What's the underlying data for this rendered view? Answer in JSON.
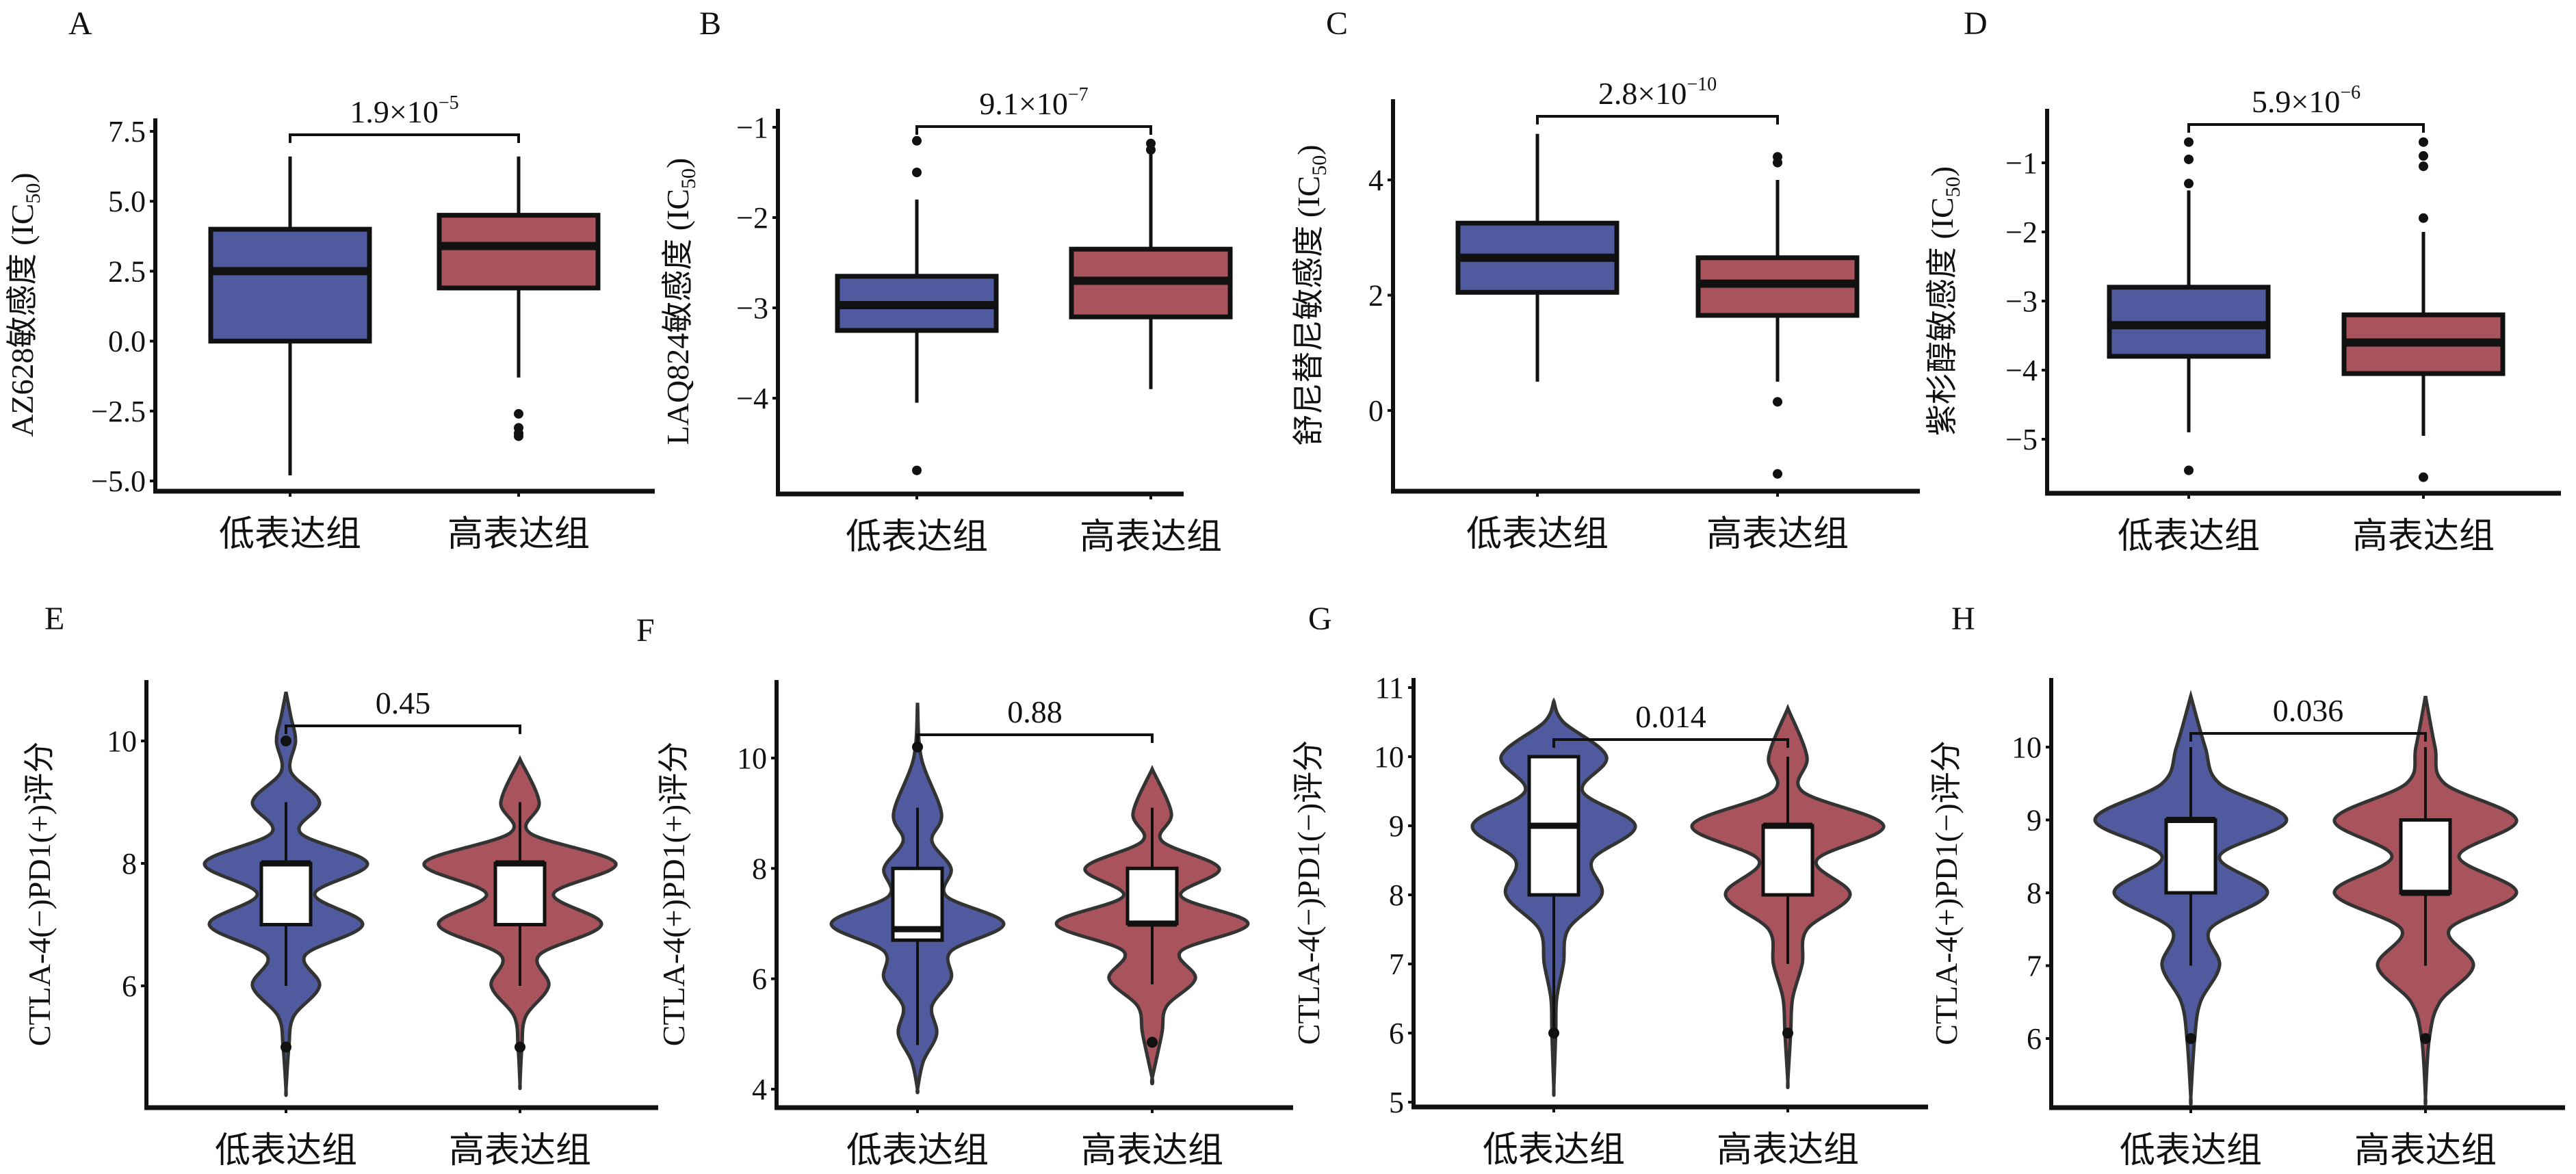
{
  "colors": {
    "low": "#4f5b9e",
    "high": "#a9545d",
    "line": "#111111",
    "violin_edge": "#333333"
  },
  "categories": [
    "低表达组",
    "高表达组"
  ],
  "chart_data": [
    {
      "panel": "A",
      "type": "box",
      "ylabel_main": "AZ628敏感度 (IC",
      "ylabel_sub": "50",
      "ylabel_end": ")",
      "ylim": [
        -5.2,
        7.8
      ],
      "ticks": [
        7.5,
        5.0,
        2.5,
        0.0,
        -2.5,
        -5.0
      ],
      "tick_labels": [
        "7.5",
        "5.0",
        "2.5",
        "0.0",
        "−2.5",
        "−5.0"
      ],
      "p_base": "1.9×10",
      "p_exp": "−5",
      "groups": [
        {
          "q1": 0.0,
          "median": 2.5,
          "q3": 4.0,
          "whisker_low": -4.8,
          "whisker_high": 6.6,
          "outliers": []
        },
        {
          "q1": 1.9,
          "median": 3.4,
          "q3": 4.5,
          "whisker_low": -1.3,
          "whisker_high": 6.6,
          "outliers": [
            -2.6,
            -3.1,
            -3.3,
            -3.4
          ]
        }
      ]
    },
    {
      "panel": "B",
      "type": "box",
      "ylabel_main": "LAQ824敏感度 (IC",
      "ylabel_sub": "50",
      "ylabel_end": ")",
      "ylim": [
        -4.95,
        -0.8
      ],
      "ticks": [
        -1,
        -2,
        -3,
        -4
      ],
      "tick_labels": [
        "−1",
        "−2",
        "−3",
        "−4"
      ],
      "p_base": "9.1×10",
      "p_exp": "−7",
      "groups": [
        {
          "q1": -3.25,
          "median": -2.97,
          "q3": -2.65,
          "whisker_low": -4.05,
          "whisker_high": -1.8,
          "outliers": [
            -1.15,
            -1.5,
            -4.8
          ]
        },
        {
          "q1": -3.1,
          "median": -2.7,
          "q3": -2.35,
          "whisker_low": -3.9,
          "whisker_high": -1.3,
          "outliers": [
            -1.18,
            -1.25
          ]
        }
      ]
    },
    {
      "panel": "C",
      "type": "box",
      "ylabel_main": "舒尼替尼敏感度 (IC",
      "ylabel_sub": "50",
      "ylabel_end": ")",
      "ylim": [
        -1.35,
        5.4
      ],
      "ticks": [
        0,
        2,
        4
      ],
      "tick_labels": [
        "0",
        "2",
        "4"
      ],
      "p_base": "2.8×10",
      "p_exp": "−10",
      "groups": [
        {
          "q1": 2.05,
          "median": 2.65,
          "q3": 3.25,
          "whisker_low": 0.5,
          "whisker_high": 4.8,
          "outliers": []
        },
        {
          "q1": 1.65,
          "median": 2.2,
          "q3": 2.65,
          "whisker_low": 0.5,
          "whisker_high": 4.0,
          "outliers": [
            4.3,
            4.4,
            0.15,
            -1.1
          ]
        }
      ]
    },
    {
      "panel": "D",
      "type": "box",
      "ylabel_main": "紫杉醇敏感度 (IC",
      "ylabel_sub": "50",
      "ylabel_end": ")",
      "ylim": [
        -5.85,
        -0.3
      ],
      "ticks": [
        -1,
        -2,
        -3,
        -4,
        -5
      ],
      "tick_labels": [
        "−1",
        "−2",
        "−3",
        "−4",
        "−5"
      ],
      "p_base": "5.9×10",
      "p_exp": "−6",
      "groups": [
        {
          "q1": -3.8,
          "median": -3.35,
          "q3": -2.8,
          "whisker_low": -4.9,
          "whisker_high": -1.4,
          "outliers": [
            -0.7,
            -0.95,
            -1.3,
            -5.45
          ]
        },
        {
          "q1": -4.05,
          "median": -3.6,
          "q3": -3.2,
          "whisker_low": -4.95,
          "whisker_high": -2.0,
          "outliers": [
            -0.7,
            -0.9,
            -1.05,
            -1.8,
            -5.55
          ]
        }
      ]
    },
    {
      "panel": "E",
      "type": "violin",
      "ylabel_main": "CTLA-4(−)PD1(+)评分",
      "ylim": [
        3.8,
        11.0
      ],
      "ticks": [
        6,
        8,
        10
      ],
      "tick_labels": [
        "6",
        "8",
        "10"
      ],
      "p_base": "0.45",
      "groups": [
        {
          "q1": 7,
          "median": 8,
          "q3": 8,
          "whisker_low": 6,
          "whisker_high": 9,
          "outliers": [
            10,
            5
          ],
          "density": [
            [
              10.8,
              0
            ],
            [
              10.4,
              0.05
            ],
            [
              10,
              0.1
            ],
            [
              9.5,
              0.05
            ],
            [
              9,
              0.35
            ],
            [
              8.5,
              0.15
            ],
            [
              8,
              0.85
            ],
            [
              7.5,
              0.3
            ],
            [
              7,
              0.8
            ],
            [
              6.5,
              0.2
            ],
            [
              6,
              0.35
            ],
            [
              5.5,
              0.08
            ],
            [
              5,
              0.03
            ],
            [
              4.3,
              0
            ]
          ]
        },
        {
          "q1": 7,
          "median": 8,
          "q3": 8,
          "whisker_low": 6,
          "whisker_high": 9,
          "outliers": [
            5
          ],
          "density": [
            [
              9.7,
              0
            ],
            [
              9,
              0.2
            ],
            [
              8.5,
              0.1
            ],
            [
              8,
              1.0
            ],
            [
              7.5,
              0.35
            ],
            [
              7,
              0.85
            ],
            [
              6.5,
              0.2
            ],
            [
              6,
              0.3
            ],
            [
              5.5,
              0.06
            ],
            [
              5,
              0.02
            ],
            [
              4.4,
              0
            ]
          ]
        }
      ]
    },
    {
      "panel": "F",
      "type": "violin",
      "ylabel_main": "CTLA-4(+)PD1(+)评分",
      "ylim": [
        3.8,
        11.2
      ],
      "ticks": [
        4,
        6,
        8,
        10
      ],
      "tick_labels": [
        "4",
        "6",
        "8",
        "10"
      ],
      "p_base": "0.88",
      "groups": [
        {
          "q1": 6.7,
          "median": 6.9,
          "q3": 8,
          "whisker_low": 4.8,
          "whisker_high": 9.1,
          "outliers": [
            10.2
          ],
          "density": [
            [
              11,
              0
            ],
            [
              10,
              0.04
            ],
            [
              9,
              0.25
            ],
            [
              8.5,
              0.15
            ],
            [
              8,
              0.35
            ],
            [
              7.5,
              0.3
            ],
            [
              7,
              0.9
            ],
            [
              6.5,
              0.35
            ],
            [
              6,
              0.35
            ],
            [
              5.5,
              0.15
            ],
            [
              5,
              0.2
            ],
            [
              4.5,
              0.06
            ],
            [
              4,
              0
            ]
          ]
        },
        {
          "q1": 7,
          "median": 7,
          "q3": 8,
          "whisker_low": 5.9,
          "whisker_high": 9.1,
          "outliers": [
            4.85
          ],
          "density": [
            [
              9.8,
              0
            ],
            [
              9,
              0.2
            ],
            [
              8.5,
              0.1
            ],
            [
              8,
              0.7
            ],
            [
              7.5,
              0.3
            ],
            [
              7,
              1.0
            ],
            [
              6.5,
              0.3
            ],
            [
              6,
              0.45
            ],
            [
              5.5,
              0.15
            ],
            [
              5,
              0.1
            ],
            [
              4.2,
              0
            ]
          ]
        }
      ]
    },
    {
      "panel": "G",
      "type": "violin",
      "ylabel_main": "CTLA-4(−)PD1(−)评分",
      "ylim": [
        4.95,
        11.0
      ],
      "ticks": [
        5,
        6,
        7,
        8,
        9,
        10,
        11
      ],
      "tick_labels": [
        "5",
        "6",
        "7",
        "8",
        "9",
        "10",
        "11"
      ],
      "p_base": "0.014",
      "groups": [
        {
          "q1": 8,
          "median": 9,
          "q3": 10,
          "whisker_low": 6,
          "whisker_high": 10,
          "outliers": [
            6
          ],
          "density": [
            [
              10.8,
              0
            ],
            [
              10.5,
              0.1
            ],
            [
              10,
              0.55
            ],
            [
              9.5,
              0.3
            ],
            [
              9,
              0.85
            ],
            [
              8.5,
              0.4
            ],
            [
              8,
              0.5
            ],
            [
              7.5,
              0.15
            ],
            [
              7,
              0.1
            ],
            [
              6.5,
              0.03
            ],
            [
              6,
              0.02
            ],
            [
              5.2,
              0
            ]
          ]
        },
        {
          "q1": 8,
          "median": 9,
          "q3": 9,
          "whisker_low": 7,
          "whisker_high": 10,
          "outliers": [
            6
          ],
          "density": [
            [
              10.7,
              0
            ],
            [
              10,
              0.2
            ],
            [
              9.5,
              0.15
            ],
            [
              9,
              1.0
            ],
            [
              8.5,
              0.3
            ],
            [
              8,
              0.65
            ],
            [
              7.5,
              0.2
            ],
            [
              7,
              0.15
            ],
            [
              6.5,
              0.05
            ],
            [
              6,
              0.03
            ],
            [
              5.3,
              0
            ]
          ]
        }
      ]
    },
    {
      "panel": "H",
      "type": "violin",
      "ylabel_main": "CTLA-4(+)PD1(−)评分",
      "ylim": [
        5.0,
        10.9
      ],
      "ticks": [
        6,
        7,
        8,
        9,
        10
      ],
      "tick_labels": [
        "6",
        "7",
        "8",
        "9",
        "10"
      ],
      "p_base": "0.036",
      "groups": [
        {
          "q1": 8,
          "median": 9,
          "q3": 9,
          "whisker_low": 7,
          "whisker_high": 10,
          "outliers": [
            6
          ],
          "density": [
            [
              10.7,
              0
            ],
            [
              10,
              0.15
            ],
            [
              9.5,
              0.3
            ],
            [
              9,
              1.0
            ],
            [
              8.5,
              0.3
            ],
            [
              8,
              0.8
            ],
            [
              7.5,
              0.2
            ],
            [
              7,
              0.3
            ],
            [
              6.5,
              0.1
            ],
            [
              6,
              0.04
            ],
            [
              5.2,
              0
            ]
          ]
        },
        {
          "q1": 8,
          "median": 8,
          "q3": 9,
          "whisker_low": 7,
          "whisker_high": 10,
          "outliers": [
            6
          ],
          "density": [
            [
              10.7,
              0
            ],
            [
              10,
              0.1
            ],
            [
              9.5,
              0.2
            ],
            [
              9,
              0.95
            ],
            [
              8.5,
              0.35
            ],
            [
              8,
              0.95
            ],
            [
              7.5,
              0.25
            ],
            [
              7,
              0.5
            ],
            [
              6.5,
              0.15
            ],
            [
              6,
              0.04
            ],
            [
              5.2,
              0
            ]
          ]
        }
      ]
    }
  ]
}
